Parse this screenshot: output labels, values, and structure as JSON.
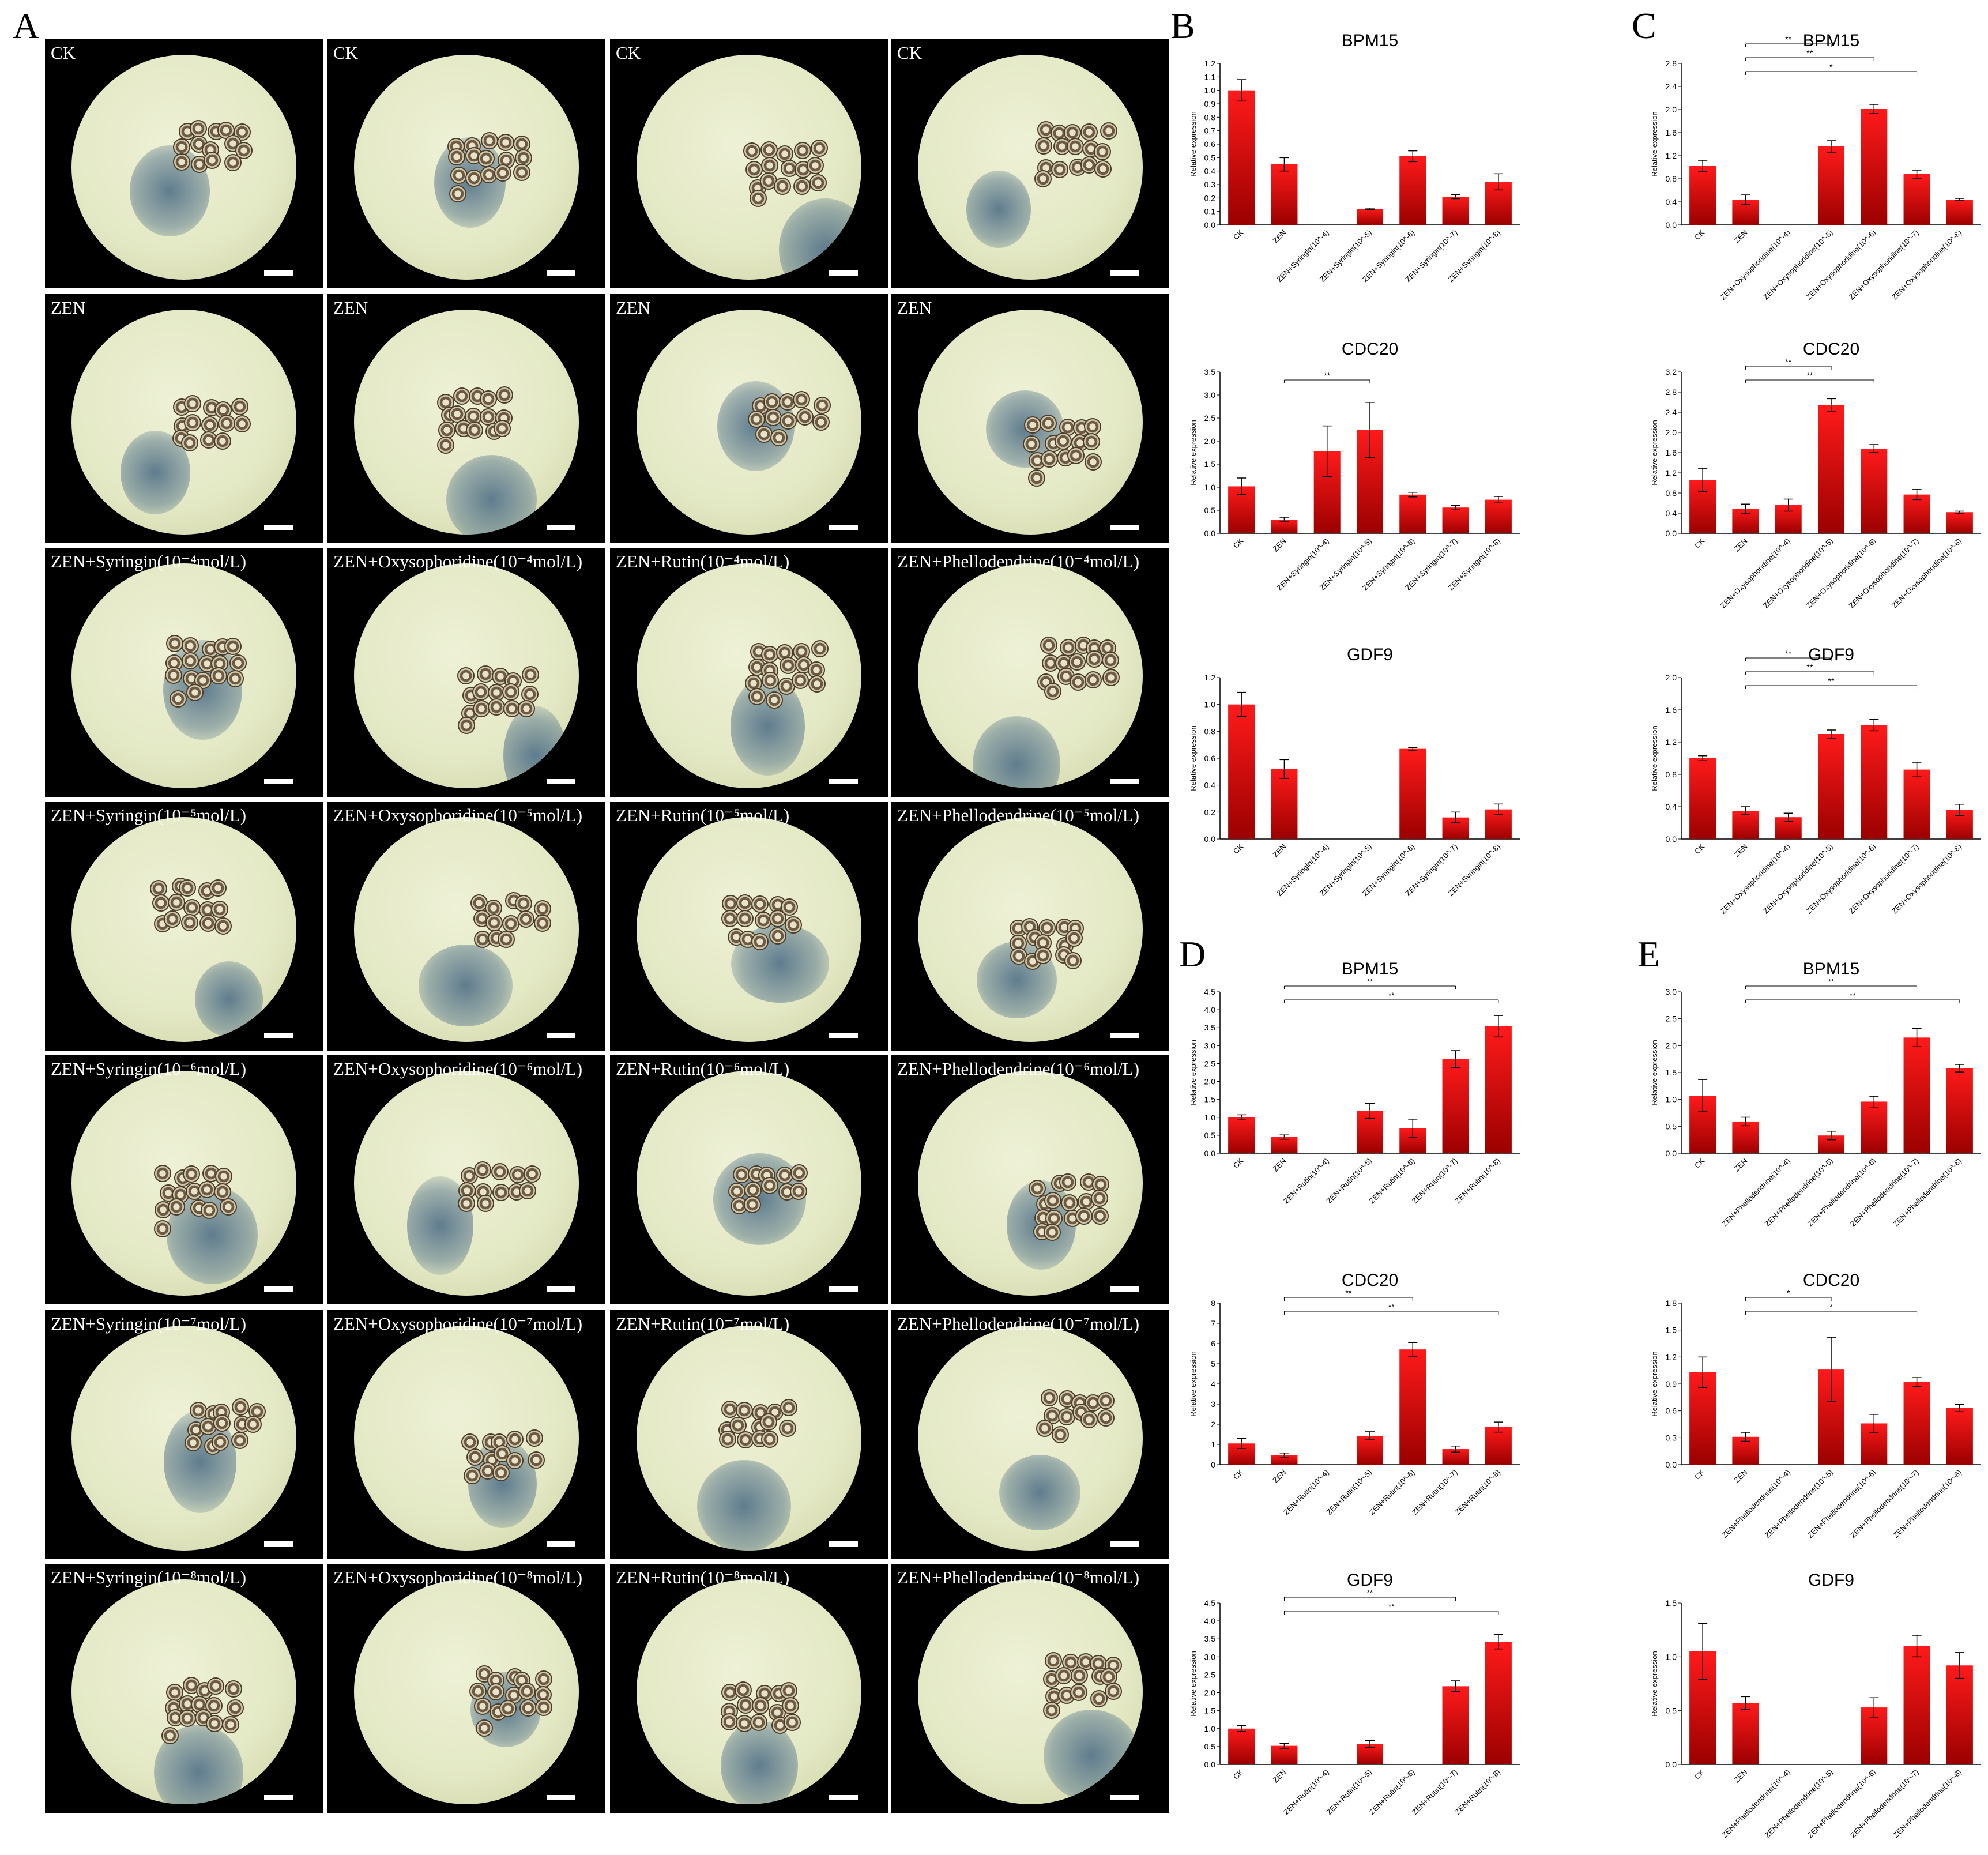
{
  "panel_letters": {
    "a": "A",
    "b": "B",
    "c": "C",
    "d": "D",
    "e": "E"
  },
  "micrographs": {
    "labels": [
      [
        "CK",
        "CK",
        "CK",
        "CK"
      ],
      [
        "ZEN",
        "ZEN",
        "ZEN",
        "ZEN"
      ],
      [
        "ZEN+Syringin(10⁻⁴mol/L)",
        "ZEN+Oxysophoridine(10⁻⁴mol/L)",
        "ZEN+Rutin(10⁻⁴mol/L)",
        "ZEN+Phellodendrine(10⁻⁴mol/L)"
      ],
      [
        "ZEN+Syringin(10⁻⁵mol/L)",
        "ZEN+Oxysophoridine(10⁻⁵mol/L)",
        "ZEN+Rutin(10⁻⁵mol/L)",
        "ZEN+Phellodendrine(10⁻⁵mol/L)"
      ],
      [
        "ZEN+Syringin(10⁻⁶mol/L)",
        "ZEN+Oxysophoridine(10⁻⁶mol/L)",
        "ZEN+Rutin(10⁻⁶mol/L)",
        "ZEN+Phellodendrine(10⁻⁶mol/L)"
      ],
      [
        "ZEN+Syringin(10⁻⁷mol/L)",
        "ZEN+Oxysophoridine(10⁻⁷mol/L)",
        "ZEN+Rutin(10⁻⁷mol/L)",
        "ZEN+Phellodendrine(10⁻⁷mol/L)"
      ],
      [
        "ZEN+Syringin(10⁻⁸mol/L)",
        "ZEN+Oxysophoridine(10⁻⁸mol/L)",
        "ZEN+Rutin(10⁻⁸mol/L)",
        "ZEN+Phellodendrine(10⁻⁸mol/L)"
      ]
    ]
  },
  "colors": {
    "bar_top": "#ff1a1a",
    "bar_bottom": "#9b0000",
    "tile_bg": "#000000",
    "dish": "#e3e8c4",
    "stain": "#5f7c8e"
  },
  "chart_data": [
    {
      "panel": "B",
      "type": "bar",
      "title": "BPM15",
      "ylabel": "Relative expression",
      "ylim": [
        0,
        1.2
      ],
      "yticks": [
        "0.0",
        "0.1",
        "0.2",
        "0.3",
        "0.4",
        "0.5",
        "0.6",
        "0.7",
        "0.8",
        "0.9",
        "1.0",
        "1.1",
        "1.2"
      ],
      "categories": [
        "CK",
        "ZEN",
        "ZEN+Syringin(10^-4)",
        "ZEN+Syringin(10^-5)",
        "ZEN+Syringin(10^-6)",
        "ZEN+Syringin(10^-7)",
        "ZEN+Syringin(10^-8)"
      ],
      "values": [
        1.0,
        0.45,
        0,
        0.12,
        0.51,
        0.21,
        0.32
      ],
      "errors": [
        0.08,
        0.05,
        0,
        0.005,
        0.04,
        0.015,
        0.06
      ],
      "significance": []
    },
    {
      "panel": "B",
      "type": "bar",
      "title": "CDC20",
      "ylabel": "Relative expression",
      "ylim": [
        0,
        3.5
      ],
      "yticks": [
        "0.0",
        "0.5",
        "1.0",
        "1.5",
        "2.0",
        "2.5",
        "3.0",
        "3.5"
      ],
      "categories": [
        "CK",
        "ZEN",
        "ZEN+Syringin(10^-4)",
        "ZEN+Syringin(10^-5)",
        "ZEN+Syringin(10^-6)",
        "ZEN+Syringin(10^-7)",
        "ZEN+Syringin(10^-8)"
      ],
      "values": [
        1.02,
        0.3,
        1.78,
        2.24,
        0.84,
        0.56,
        0.73
      ],
      "errors": [
        0.18,
        0.05,
        0.55,
        0.6,
        0.05,
        0.05,
        0.07
      ],
      "significance": [
        {
          "from": 1,
          "to": 3,
          "label": "**"
        }
      ]
    },
    {
      "panel": "B",
      "type": "bar",
      "title": "GDF9",
      "ylabel": "Relative expression",
      "ylim": [
        0,
        1.2
      ],
      "yticks": [
        "0.0",
        "0.2",
        "0.4",
        "0.6",
        "0.8",
        "1.0",
        "1.2"
      ],
      "categories": [
        "CK",
        "ZEN",
        "ZEN+Syringin(10^-4)",
        "ZEN+Syringin(10^-5)",
        "ZEN+Syringin(10^-6)",
        "ZEN+Syringin(10^-7)",
        "ZEN+Syringin(10^-8)"
      ],
      "values": [
        1.0,
        0.52,
        0,
        0,
        0.67,
        0.16,
        0.22
      ],
      "errors": [
        0.09,
        0.07,
        0,
        0,
        0.01,
        0.04,
        0.04
      ],
      "significance": []
    },
    {
      "panel": "C",
      "type": "bar",
      "title": "BPM15",
      "ylabel": "Relative expression",
      "ylim": [
        0,
        2.8
      ],
      "yticks": [
        "0.0",
        "0.4",
        "0.8",
        "1.2",
        "1.6",
        "2.0",
        "2.4",
        "2.8"
      ],
      "categories": [
        "CK",
        "ZEN",
        "ZEN+Oxysophoridine(10^-4)",
        "ZEN+Oxysophoridine(10^-5)",
        "ZEN+Oxysophoridine(10^-6)",
        "ZEN+Oxysophoridine(10^-7)",
        "ZEN+Oxysophoridine(10^-8)"
      ],
      "values": [
        1.02,
        0.44,
        0,
        1.36,
        2.01,
        0.88,
        0.44
      ],
      "errors": [
        0.1,
        0.08,
        0,
        0.1,
        0.08,
        0.07,
        0.02
      ],
      "significance": [
        {
          "from": 1,
          "to": 3,
          "label": "**"
        },
        {
          "from": 1,
          "to": 4,
          "label": "**"
        },
        {
          "from": 1,
          "to": 5,
          "label": "*"
        }
      ]
    },
    {
      "panel": "C",
      "type": "bar",
      "title": "CDC20",
      "ylabel": "Relative expression",
      "ylim": [
        0,
        3.2
      ],
      "yticks": [
        "0.0",
        "0.4",
        "0.8",
        "1.2",
        "1.6",
        "2.0",
        "2.4",
        "2.8",
        "3.2"
      ],
      "categories": [
        "CK",
        "ZEN",
        "ZEN+Oxysophoridine(10^-4)",
        "ZEN+Oxysophoridine(10^-5)",
        "ZEN+Oxysophoridine(10^-6)",
        "ZEN+Oxysophoridine(10^-7)",
        "ZEN+Oxysophoridine(10^-8)"
      ],
      "values": [
        1.06,
        0.49,
        0.56,
        2.54,
        1.68,
        0.77,
        0.42
      ],
      "errors": [
        0.23,
        0.09,
        0.12,
        0.13,
        0.08,
        0.1,
        0.02
      ],
      "significance": [
        {
          "from": 1,
          "to": 3,
          "label": "**"
        },
        {
          "from": 1,
          "to": 4,
          "label": "**"
        }
      ]
    },
    {
      "panel": "C",
      "type": "bar",
      "title": "GDF9",
      "ylabel": "Relative expression",
      "ylim": [
        0,
        2.0
      ],
      "yticks": [
        "0.0",
        "0.4",
        "0.8",
        "1.2",
        "1.6",
        "2.0"
      ],
      "categories": [
        "CK",
        "ZEN",
        "ZEN+Oxysophoridine(10^-4)",
        "ZEN+Oxysophoridine(10^-5)",
        "ZEN+Oxysophoridine(10^-6)",
        "ZEN+Oxysophoridine(10^-7)",
        "ZEN+Oxysophoridine(10^-8)"
      ],
      "values": [
        1.0,
        0.35,
        0.27,
        1.3,
        1.41,
        0.86,
        0.36
      ],
      "errors": [
        0.03,
        0.05,
        0.05,
        0.05,
        0.07,
        0.09,
        0.07
      ],
      "significance": [
        {
          "from": 1,
          "to": 3,
          "label": "**"
        },
        {
          "from": 1,
          "to": 4,
          "label": "**"
        },
        {
          "from": 1,
          "to": 5,
          "label": "**"
        }
      ]
    },
    {
      "panel": "D",
      "type": "bar",
      "title": "BPM15",
      "ylabel": "Relative expression",
      "ylim": [
        0,
        4.5
      ],
      "yticks": [
        "0.0",
        "0.5",
        "1.0",
        "1.5",
        "2.0",
        "2.5",
        "3.0",
        "3.5",
        "4.0",
        "4.5"
      ],
      "categories": [
        "CK",
        "ZEN",
        "ZEN+Rutin(10^-4)",
        "ZEN+Rutin(10^-5)",
        "ZEN+Rutin(10^-6)",
        "ZEN+Rutin(10^-7)",
        "ZEN+Rutin(10^-8)"
      ],
      "values": [
        1.0,
        0.45,
        0,
        1.18,
        0.7,
        2.62,
        3.54
      ],
      "errors": [
        0.07,
        0.06,
        0,
        0.21,
        0.25,
        0.24,
        0.3
      ],
      "significance": [
        {
          "from": 1,
          "to": 5,
          "label": "**"
        },
        {
          "from": 1,
          "to": 6,
          "label": "**"
        }
      ]
    },
    {
      "panel": "D",
      "type": "bar",
      "title": "CDC20",
      "ylabel": "Relative expression",
      "ylim": [
        0,
        8
      ],
      "yticks": [
        "0",
        "1",
        "2",
        "3",
        "4",
        "5",
        "6",
        "7",
        "8"
      ],
      "categories": [
        "CK",
        "ZEN",
        "ZEN+Rutin(10^-4)",
        "ZEN+Rutin(10^-5)",
        "ZEN+Rutin(10^-6)",
        "ZEN+Rutin(10^-7)",
        "ZEN+Rutin(10^-8)"
      ],
      "values": [
        1.05,
        0.46,
        0,
        1.43,
        5.71,
        0.77,
        1.86
      ],
      "errors": [
        0.25,
        0.12,
        0,
        0.2,
        0.34,
        0.15,
        0.25
      ],
      "significance": [
        {
          "from": 1,
          "to": 4,
          "label": "**"
        },
        {
          "from": 1,
          "to": 6,
          "label": "**"
        }
      ]
    },
    {
      "panel": "D",
      "type": "bar",
      "title": "GDF9",
      "ylabel": "Relative expression",
      "ylim": [
        0,
        4.5
      ],
      "yticks": [
        "0.0",
        "0.5",
        "1.0",
        "1.5",
        "2.0",
        "2.5",
        "3.0",
        "3.5",
        "4.0",
        "4.5"
      ],
      "categories": [
        "CK",
        "ZEN",
        "ZEN+Rutin(10^-4)",
        "ZEN+Rutin(10^-5)",
        "ZEN+Rutin(10^-6)",
        "ZEN+Rutin(10^-7)",
        "ZEN+Rutin(10^-8)"
      ],
      "values": [
        1.0,
        0.52,
        0,
        0.57,
        0,
        2.18,
        3.42
      ],
      "errors": [
        0.08,
        0.07,
        0,
        0.1,
        0,
        0.15,
        0.2
      ],
      "significance": [
        {
          "from": 1,
          "to": 5,
          "label": "**"
        },
        {
          "from": 1,
          "to": 6,
          "label": "**"
        }
      ]
    },
    {
      "panel": "E",
      "type": "bar",
      "title": "BPM15",
      "ylabel": "Relative expression",
      "ylim": [
        0,
        3.0
      ],
      "yticks": [
        "0.0",
        "0.5",
        "1.0",
        "1.5",
        "2.0",
        "2.5",
        "3.0"
      ],
      "categories": [
        "CK",
        "ZEN",
        "ZEN+Phellodendrine(10^-4)",
        "ZEN+Phellodendrine(10^-5)",
        "ZEN+Phellodendrine(10^-6)",
        "ZEN+Phellodendrine(10^-7)",
        "ZEN+Phellodendrine(10^-8)"
      ],
      "values": [
        1.07,
        0.59,
        0,
        0.33,
        0.96,
        2.15,
        1.58
      ],
      "errors": [
        0.3,
        0.08,
        0,
        0.08,
        0.1,
        0.17,
        0.07
      ],
      "significance": [
        {
          "from": 1,
          "to": 5,
          "label": "**"
        },
        {
          "from": 1,
          "to": 6,
          "label": "**"
        }
      ]
    },
    {
      "panel": "E",
      "type": "bar",
      "title": "CDC20",
      "ylabel": "Relative expression",
      "ylim": [
        0,
        1.8
      ],
      "yticks": [
        "0.0",
        "0.3",
        "0.6",
        "0.9",
        "1.2",
        "1.5",
        "1.8"
      ],
      "categories": [
        "CK",
        "ZEN",
        "ZEN+Phellodendrine(10^-4)",
        "ZEN+Phellodendrine(10^-5)",
        "ZEN+Phellodendrine(10^-6)",
        "ZEN+Phellodendrine(10^-7)",
        "ZEN+Phellodendrine(10^-8)"
      ],
      "values": [
        1.03,
        0.31,
        0,
        1.06,
        0.46,
        0.92,
        0.63
      ],
      "errors": [
        0.17,
        0.05,
        0,
        0.36,
        0.1,
        0.05,
        0.04
      ],
      "significance": [
        {
          "from": 1,
          "to": 3,
          "label": "*"
        },
        {
          "from": 1,
          "to": 5,
          "label": "*"
        }
      ]
    },
    {
      "panel": "E",
      "type": "bar",
      "title": "GDF9",
      "ylabel": "Relative expression",
      "ylim": [
        0,
        1.5
      ],
      "yticks": [
        "0.0",
        "0.5",
        "1.0",
        "1.5"
      ],
      "categories": [
        "CK",
        "ZEN",
        "ZEN+Phellodendrine(10^-4)",
        "ZEN+Phellodendrine(10^-5)",
        "ZEN+Phellodendrine(10^-6)",
        "ZEN+Phellodendrine(10^-7)",
        "ZEN+Phellodendrine(10^-8)"
      ],
      "values": [
        1.05,
        0.57,
        0,
        0,
        0.53,
        1.1,
        0.92
      ],
      "errors": [
        0.26,
        0.06,
        0,
        0,
        0.09,
        0.1,
        0.12
      ],
      "significance": []
    }
  ]
}
